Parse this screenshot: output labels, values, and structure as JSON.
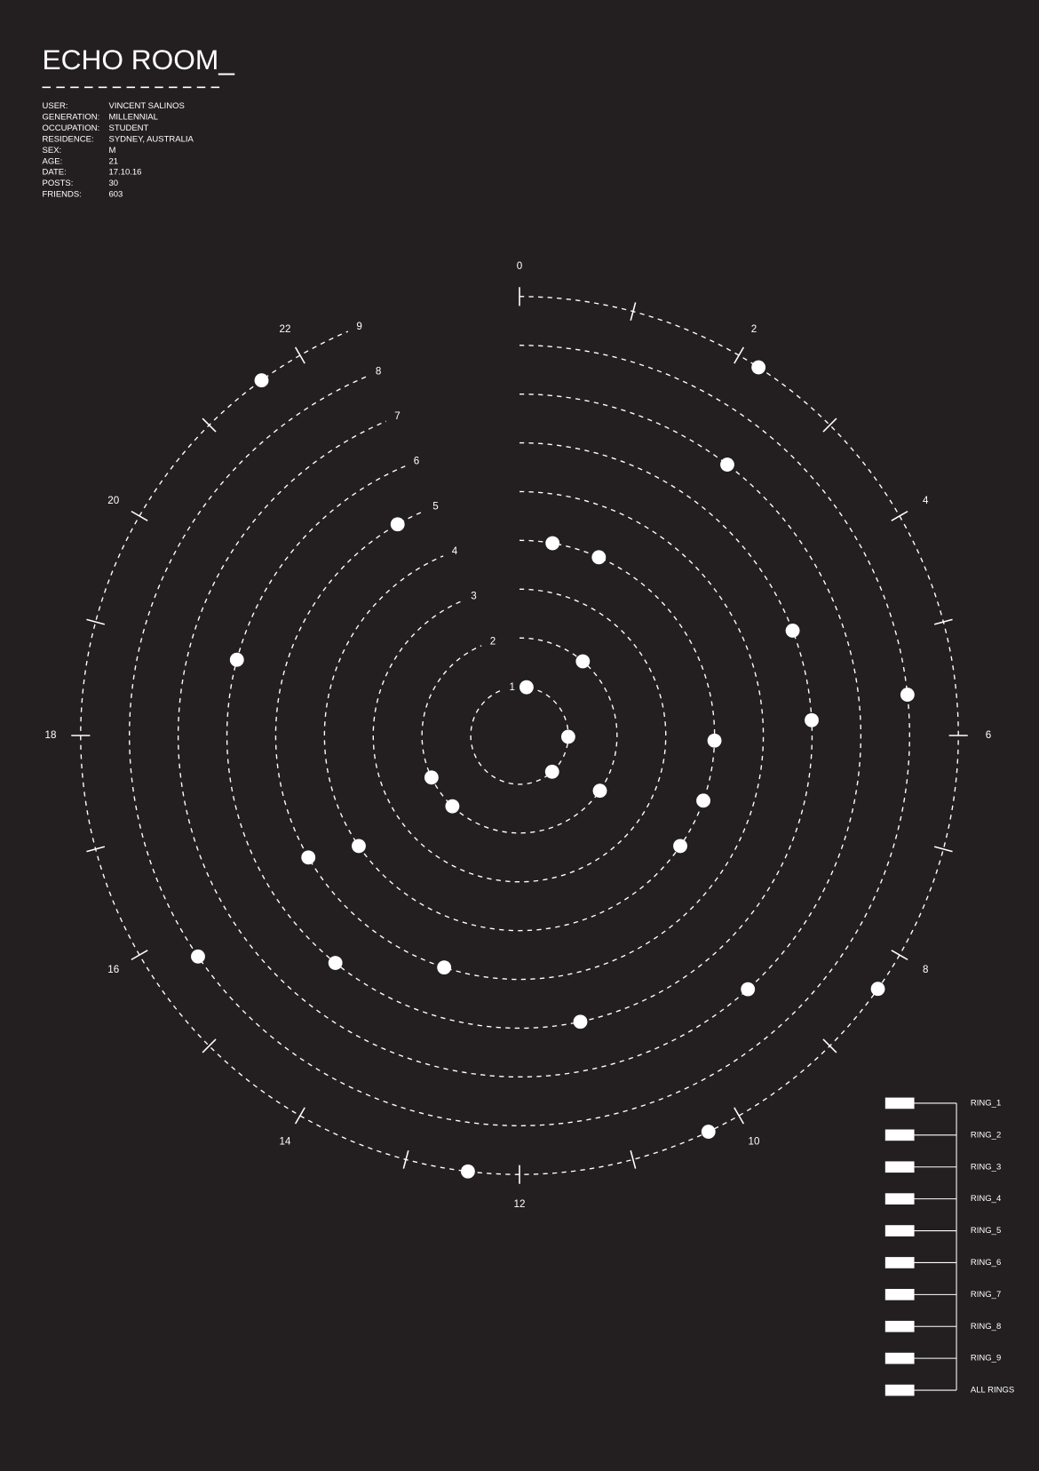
{
  "chart_data": {
    "type": "radial-scatter",
    "title": "ECHO ROOM_",
    "profile": [
      [
        "USER:",
        "VINCENT SALINOS"
      ],
      [
        "GENERATION:",
        "MILLENNIAL"
      ],
      [
        "OCCUPATION:",
        "STUDENT"
      ],
      [
        "RESIDENCE:",
        "SYDNEY, AUSTRALIA"
      ],
      [
        "SEX:",
        "M"
      ],
      [
        "AGE:",
        "21"
      ],
      [
        "DATE:",
        "17.10.16"
      ],
      [
        "POSTS:",
        "30"
      ],
      [
        "FRIENDS:",
        "603"
      ]
    ],
    "xlim": [
      0,
      24
    ],
    "xticks": [
      0,
      2,
      4,
      6,
      8,
      10,
      12,
      14,
      16,
      18,
      20,
      22
    ],
    "rlim": [
      0,
      9
    ],
    "rings": [
      1,
      2,
      3,
      4,
      5,
      6,
      7,
      8,
      9
    ],
    "color": "#ffffff",
    "series": [
      {
        "name": "RING_1",
        "values": [
          0.55,
          6.1,
          9.2
        ]
      },
      {
        "name": "RING_2",
        "values": [
          2.7,
          8.3,
          14.9,
          16.3
        ]
      },
      {
        "name": "RING_3",
        "values": []
      },
      {
        "name": "RING_4",
        "values": [
          0.65,
          1.6,
          6.1,
          7.3,
          8.3,
          15.7
        ]
      },
      {
        "name": "RING_5",
        "values": [
          13.2,
          16.0,
          22.0
        ]
      },
      {
        "name": "RING_6",
        "values": [
          4.6,
          5.8,
          11.2,
          14.6,
          19.0
        ]
      },
      {
        "name": "RING_7",
        "values": [
          2.5,
          9.2
        ]
      },
      {
        "name": "RING_8",
        "values": [
          5.6,
          15.7
        ]
      },
      {
        "name": "RING_9",
        "values": [
          2.2,
          8.35,
          10.3,
          12.45,
          21.6
        ]
      }
    ],
    "all_rings_label": "ALL RINGS"
  }
}
